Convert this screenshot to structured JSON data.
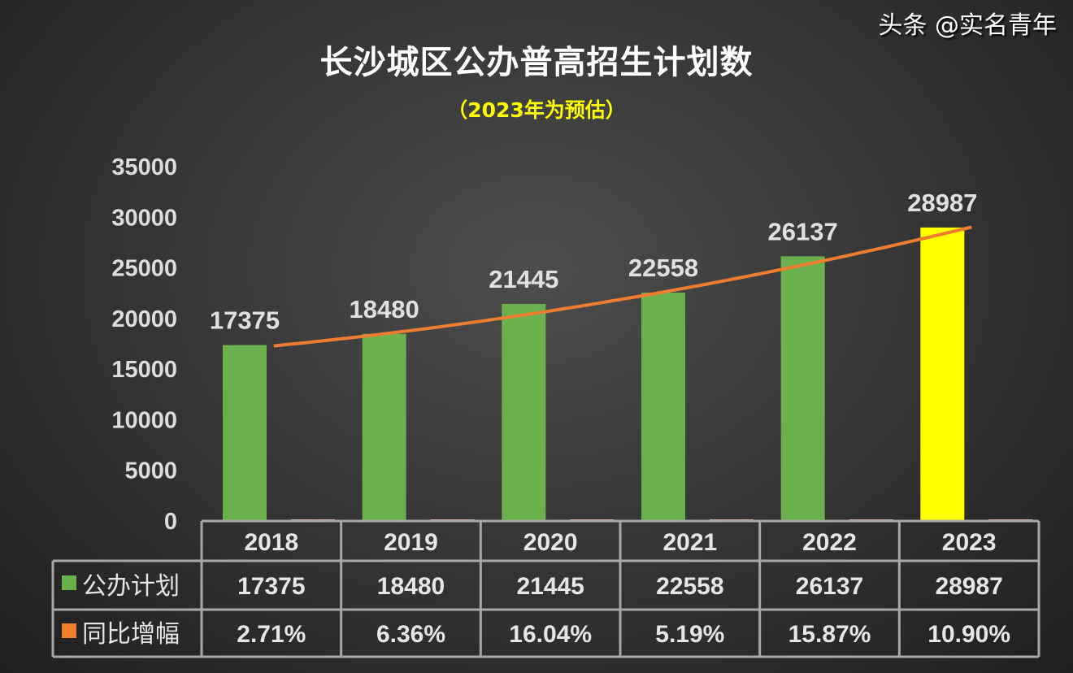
{
  "title": "长沙城区公办普高招生计划数",
  "subtitle": "（2023年为预估）",
  "watermark": "头条 @实名青年",
  "chart_data": {
    "type": "bar",
    "title": "长沙城区公办普高招生计划数",
    "subtitle": "（2023年为预估）",
    "categories": [
      "2018",
      "2019",
      "2020",
      "2021",
      "2022",
      "2023"
    ],
    "series": [
      {
        "name": "公办计划",
        "values": [
          17375,
          18480,
          21445,
          22558,
          26137,
          28987
        ],
        "color": "#6ab04c",
        "highlight_color": "#ffff00",
        "highlight_index": 5
      },
      {
        "name": "同比增幅",
        "values": [
          "2.71%",
          "6.36%",
          "16.04%",
          "5.19%",
          "15.87%",
          "10.90%"
        ],
        "color": "#f07f30"
      }
    ],
    "trendline": {
      "series": "公办计划",
      "color": "#ef7d31"
    },
    "ylim": [
      0,
      35000
    ],
    "yticks": [
      0,
      5000,
      10000,
      15000,
      20000,
      25000,
      30000,
      35000
    ],
    "data_table": true,
    "grid": false
  }
}
